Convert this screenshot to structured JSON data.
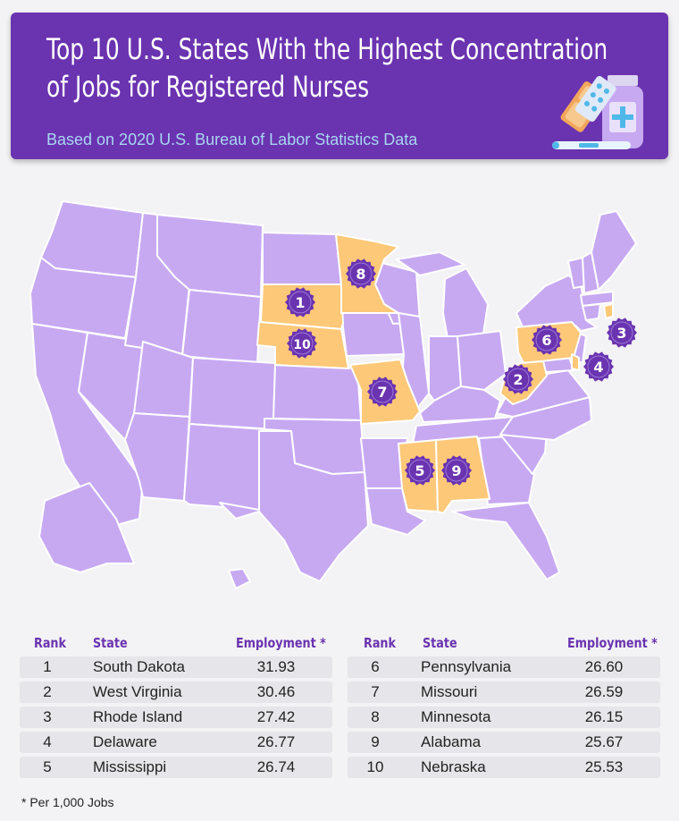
{
  "header": {
    "title_line1": "Top 10 U.S. States With the Highest Concentration",
    "title_line2": "of Jobs for Registered Nurses",
    "subtitle": "Based on 2020 U.S. Bureau of Labor Statistics Data"
  },
  "colors": {
    "header_bg": "#6a33b0",
    "state_default": "#c7a9f2",
    "state_highlight": "#fdc878",
    "badge": "#6a33b0",
    "subtitle": "#a9d6f2"
  },
  "map": {
    "badges": [
      {
        "rank": "1",
        "state": "South Dakota"
      },
      {
        "rank": "2",
        "state": "West Virginia"
      },
      {
        "rank": "3",
        "state": "Rhode Island"
      },
      {
        "rank": "4",
        "state": "Delaware"
      },
      {
        "rank": "5",
        "state": "Mississippi"
      },
      {
        "rank": "6",
        "state": "Pennsylvania"
      },
      {
        "rank": "7",
        "state": "Missouri"
      },
      {
        "rank": "8",
        "state": "Minnesota"
      },
      {
        "rank": "9",
        "state": "Alabama"
      },
      {
        "rank": "10",
        "state": "Nebraska"
      }
    ]
  },
  "table": {
    "headers": {
      "rank": "Rank",
      "state": "State",
      "employment": "Employment *"
    },
    "left": [
      {
        "rank": "1",
        "state": "South Dakota",
        "value": "31.93"
      },
      {
        "rank": "2",
        "state": "West Virginia",
        "value": "30.46"
      },
      {
        "rank": "3",
        "state": "Rhode Island",
        "value": "27.42"
      },
      {
        "rank": "4",
        "state": "Delaware",
        "value": "26.77"
      },
      {
        "rank": "5",
        "state": "Mississippi",
        "value": "26.74"
      }
    ],
    "right": [
      {
        "rank": "6",
        "state": "Pennsylvania",
        "value": "26.60"
      },
      {
        "rank": "7",
        "state": "Missouri",
        "value": "26.59"
      },
      {
        "rank": "8",
        "state": "Minnesota",
        "value": "26.15"
      },
      {
        "rank": "9",
        "state": "Alabama",
        "value": "25.67"
      },
      {
        "rank": "10",
        "state": "Nebraska",
        "value": "25.53"
      }
    ]
  },
  "footnote": "* Per 1,000 Jobs"
}
